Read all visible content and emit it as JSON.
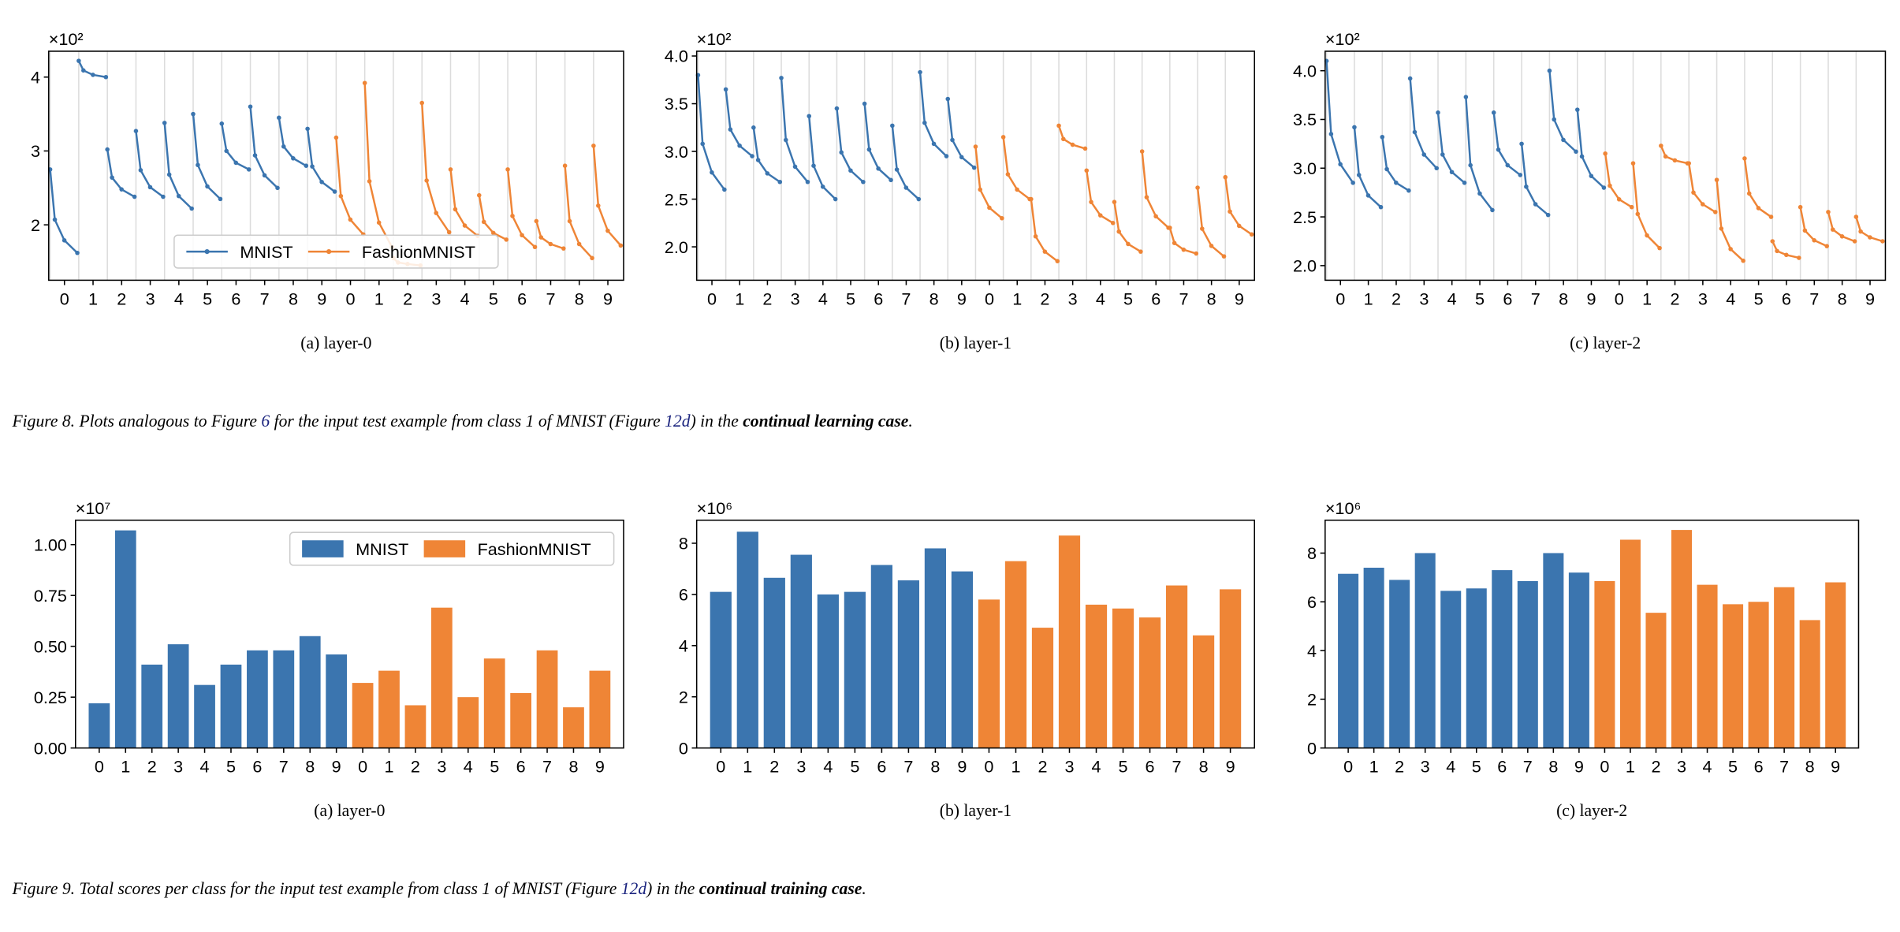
{
  "chart_data": [
    {
      "type": "line",
      "caption": "(a) layer-0",
      "y_multiplier": "×10²",
      "legend": "lower center",
      "categories": [
        "0",
        "1",
        "2",
        "3",
        "4",
        "5",
        "6",
        "7",
        "8",
        "9",
        "0",
        "1",
        "2",
        "3",
        "4",
        "5",
        "6",
        "7",
        "8",
        "9"
      ],
      "ylim": [
        1.25,
        4.35
      ],
      "yticks": [
        2,
        3,
        4
      ],
      "series": [
        {
          "name": "MNIST",
          "color": "#3b75af",
          "values": [
            [
              2.75,
              2.07,
              1.79,
              1.62
            ],
            [
              4.22,
              4.09,
              4.03,
              4.0
            ],
            [
              3.02,
              2.64,
              2.48,
              2.38
            ],
            [
              3.27,
              2.74,
              2.51,
              2.38
            ],
            [
              3.38,
              2.68,
              2.39,
              2.22
            ],
            [
              3.5,
              2.81,
              2.52,
              2.35
            ],
            [
              3.37,
              3.0,
              2.84,
              2.75
            ],
            [
              3.6,
              2.94,
              2.67,
              2.5
            ],
            [
              3.45,
              3.06,
              2.9,
              2.8
            ],
            [
              3.3,
              2.79,
              2.58,
              2.45
            ],
            null,
            null,
            null,
            null,
            null,
            null,
            null,
            null,
            null,
            null
          ]
        },
        {
          "name": "FashionMNIST",
          "color": "#ef8536",
          "values": [
            null,
            null,
            null,
            null,
            null,
            null,
            null,
            null,
            null,
            null,
            [
              3.18,
              2.39,
              2.07,
              1.87
            ],
            [
              3.92,
              2.59,
              2.03,
              1.7
            ],
            [
              1.55,
              1.49,
              1.47,
              1.45
            ],
            [
              3.65,
              2.6,
              2.16,
              1.9
            ],
            [
              2.75,
              2.21,
              1.99,
              1.85
            ],
            [
              2.4,
              2.04,
              1.89,
              1.8
            ],
            [
              2.75,
              2.12,
              1.86,
              1.7
            ],
            [
              2.05,
              1.83,
              1.74,
              1.68
            ],
            [
              2.8,
              2.05,
              1.74,
              1.55
            ],
            [
              3.07,
              2.26,
              1.92,
              1.72
            ]
          ]
        }
      ]
    },
    {
      "type": "line",
      "caption": "(b) layer-1",
      "y_multiplier": "×10²",
      "categories": [
        "0",
        "1",
        "2",
        "3",
        "4",
        "5",
        "6",
        "7",
        "8",
        "9",
        "0",
        "1",
        "2",
        "3",
        "4",
        "5",
        "6",
        "7",
        "8",
        "9"
      ],
      "ylim": [
        1.65,
        4.05
      ],
      "yticks": [
        {
          "value": 2,
          "label": "2.0"
        },
        2.5,
        {
          "value": 3,
          "label": "3.0"
        },
        3.5,
        {
          "value": 4,
          "label": "4.0"
        }
      ],
      "series": [
        {
          "name": "MNIST",
          "color": "#3b75af",
          "values": [
            [
              3.8,
              3.08,
              2.78,
              2.6
            ],
            [
              3.65,
              3.23,
              3.06,
              2.95
            ],
            [
              3.25,
              2.91,
              2.77,
              2.68
            ],
            [
              3.77,
              3.12,
              2.84,
              2.68
            ],
            [
              3.37,
              2.85,
              2.63,
              2.5
            ],
            [
              3.45,
              2.99,
              2.8,
              2.68
            ],
            [
              3.5,
              3.02,
              2.82,
              2.7
            ],
            [
              3.27,
              2.81,
              2.62,
              2.5
            ],
            [
              3.83,
              3.3,
              3.08,
              2.95
            ],
            [
              3.55,
              3.12,
              2.94,
              2.83
            ],
            null,
            null,
            null,
            null,
            null,
            null,
            null,
            null,
            null,
            null
          ]
        },
        {
          "name": "FashionMNIST",
          "color": "#ef8536",
          "values": [
            null,
            null,
            null,
            null,
            null,
            null,
            null,
            null,
            null,
            null,
            [
              3.05,
              2.6,
              2.41,
              2.3
            ],
            [
              3.15,
              2.76,
              2.6,
              2.5
            ],
            [
              2.5,
              2.11,
              1.95,
              1.85
            ],
            [
              3.27,
              3.13,
              3.07,
              3.03
            ],
            [
              2.8,
              2.47,
              2.33,
              2.25
            ],
            [
              2.47,
              2.16,
              2.03,
              1.95
            ],
            [
              3.0,
              2.52,
              2.32,
              2.2
            ],
            [
              2.2,
              2.04,
              1.97,
              1.93
            ],
            [
              2.62,
              2.19,
              2.01,
              1.9
            ],
            [
              2.73,
              2.37,
              2.22,
              2.13
            ]
          ]
        }
      ]
    },
    {
      "type": "line",
      "caption": "(c) layer-2",
      "y_multiplier": "×10²",
      "categories": [
        "0",
        "1",
        "2",
        "3",
        "4",
        "5",
        "6",
        "7",
        "8",
        "9",
        "0",
        "1",
        "2",
        "3",
        "4",
        "5",
        "6",
        "7",
        "8",
        "9"
      ],
      "ylim": [
        1.85,
        4.2
      ],
      "yticks": [
        {
          "value": 2,
          "label": "2.0"
        },
        2.5,
        {
          "value": 3,
          "label": "3.0"
        },
        3.5,
        {
          "value": 4,
          "label": "4.0"
        }
      ],
      "series": [
        {
          "name": "MNIST",
          "color": "#3b75af",
          "values": [
            [
              4.1,
              3.35,
              3.04,
              2.85
            ],
            [
              3.42,
              2.93,
              2.72,
              2.6
            ],
            [
              3.32,
              2.99,
              2.85,
              2.77
            ],
            [
              3.92,
              3.37,
              3.14,
              3.0
            ],
            [
              3.57,
              3.14,
              2.96,
              2.85
            ],
            [
              3.73,
              3.03,
              2.74,
              2.57
            ],
            [
              3.57,
              3.19,
              3.03,
              2.93
            ],
            [
              3.25,
              2.81,
              2.63,
              2.52
            ],
            [
              4.0,
              3.5,
              3.29,
              3.17
            ],
            [
              3.6,
              3.12,
              2.92,
              2.8
            ],
            null,
            null,
            null,
            null,
            null,
            null,
            null,
            null,
            null,
            null
          ]
        },
        {
          "name": "FashionMNIST",
          "color": "#ef8536",
          "values": [
            null,
            null,
            null,
            null,
            null,
            null,
            null,
            null,
            null,
            null,
            [
              3.15,
              2.82,
              2.68,
              2.6
            ],
            [
              3.05,
              2.53,
              2.31,
              2.18
            ],
            [
              3.23,
              3.12,
              3.08,
              3.05
            ],
            [
              3.05,
              2.75,
              2.63,
              2.55
            ],
            [
              2.88,
              2.38,
              2.17,
              2.05
            ],
            [
              3.1,
              2.74,
              2.59,
              2.5
            ],
            [
              2.25,
              2.15,
              2.11,
              2.08
            ],
            [
              2.6,
              2.36,
              2.26,
              2.2
            ],
            [
              2.55,
              2.37,
              2.3,
              2.25
            ],
            [
              2.5,
              2.35,
              2.29,
              2.25
            ]
          ]
        }
      ]
    },
    {
      "type": "bar",
      "caption": "(a) layer-0",
      "y_multiplier": "×10⁷",
      "legend": "upper right",
      "categories": [
        "0",
        "1",
        "2",
        "3",
        "4",
        "5",
        "6",
        "7",
        "8",
        "9",
        "0",
        "1",
        "2",
        "3",
        "4",
        "5",
        "6",
        "7",
        "8",
        "9"
      ],
      "ylim": [
        0,
        1.12
      ],
      "yticks": [
        {
          "value": 0,
          "label": "0.00"
        },
        {
          "value": 0.25,
          "label": "0.25"
        },
        {
          "value": 0.5,
          "label": "0.50"
        },
        {
          "value": 0.75,
          "label": "0.75"
        },
        {
          "value": 1,
          "label": "1.00"
        }
      ],
      "series": [
        {
          "name": "MNIST",
          "color": "#3b75af",
          "values": [
            0.22,
            1.07,
            0.41,
            0.51,
            0.31,
            0.41,
            0.48,
            0.48,
            0.55,
            0.46,
            null,
            null,
            null,
            null,
            null,
            null,
            null,
            null,
            null,
            null
          ]
        },
        {
          "name": "FashionMNIST",
          "color": "#ef8536",
          "values": [
            null,
            null,
            null,
            null,
            null,
            null,
            null,
            null,
            null,
            null,
            0.32,
            0.38,
            0.21,
            0.69,
            0.25,
            0.44,
            0.27,
            0.48,
            0.2,
            0.38
          ]
        }
      ]
    },
    {
      "type": "bar",
      "caption": "(b) layer-1",
      "y_multiplier": "×10⁶",
      "categories": [
        "0",
        "1",
        "2",
        "3",
        "4",
        "5",
        "6",
        "7",
        "8",
        "9",
        "0",
        "1",
        "2",
        "3",
        "4",
        "5",
        "6",
        "7",
        "8",
        "9"
      ],
      "ylim": [
        0,
        8.9
      ],
      "yticks": [
        0,
        2,
        4,
        6,
        8
      ],
      "series": [
        {
          "name": "MNIST",
          "color": "#3b75af",
          "values": [
            6.1,
            8.45,
            6.65,
            7.55,
            6.0,
            6.1,
            7.15,
            6.55,
            7.8,
            6.9,
            null,
            null,
            null,
            null,
            null,
            null,
            null,
            null,
            null,
            null
          ]
        },
        {
          "name": "FashionMNIST",
          "color": "#ef8536",
          "values": [
            null,
            null,
            null,
            null,
            null,
            null,
            null,
            null,
            null,
            null,
            5.8,
            7.3,
            4.7,
            8.3,
            5.6,
            5.45,
            5.1,
            6.35,
            4.4,
            6.2
          ]
        }
      ]
    },
    {
      "type": "bar",
      "caption": "(c) layer-2",
      "y_multiplier": "×10⁶",
      "categories": [
        "0",
        "1",
        "2",
        "3",
        "4",
        "5",
        "6",
        "7",
        "8",
        "9",
        "0",
        "1",
        "2",
        "3",
        "4",
        "5",
        "6",
        "7",
        "8",
        "9"
      ],
      "ylim": [
        0,
        9.35
      ],
      "yticks": [
        0,
        2,
        4,
        6,
        8
      ],
      "series": [
        {
          "name": "MNIST",
          "color": "#3b75af",
          "values": [
            7.15,
            7.4,
            6.9,
            8.0,
            6.45,
            6.55,
            7.3,
            6.85,
            8.0,
            7.2,
            null,
            null,
            null,
            null,
            null,
            null,
            null,
            null,
            null,
            null
          ]
        },
        {
          "name": "FashionMNIST",
          "color": "#ef8536",
          "values": [
            null,
            null,
            null,
            null,
            null,
            null,
            null,
            null,
            null,
            null,
            6.85,
            8.55,
            5.55,
            8.95,
            6.7,
            5.9,
            6.0,
            6.6,
            5.25,
            6.8
          ]
        }
      ]
    }
  ],
  "figure_captions": [
    [
      {
        "text": "Figure 8. Plots analogous to Figure "
      },
      {
        "text": "6",
        "style": "link"
      },
      {
        "text": " for the input test example from class 1 of MNIST (Figure "
      },
      {
        "text": "12d",
        "style": "link"
      },
      {
        "text": ") in the "
      },
      {
        "text": "continual learning case",
        "style": "bold"
      },
      {
        "text": "."
      }
    ],
    [
      {
        "text": "Figure 9. Total scores per class for the input test example from class 1 of MNIST (Figure "
      },
      {
        "text": "12d",
        "style": "link"
      },
      {
        "text": ") in the "
      },
      {
        "text": "continual training case",
        "style": "bold"
      },
      {
        "text": "."
      }
    ]
  ]
}
